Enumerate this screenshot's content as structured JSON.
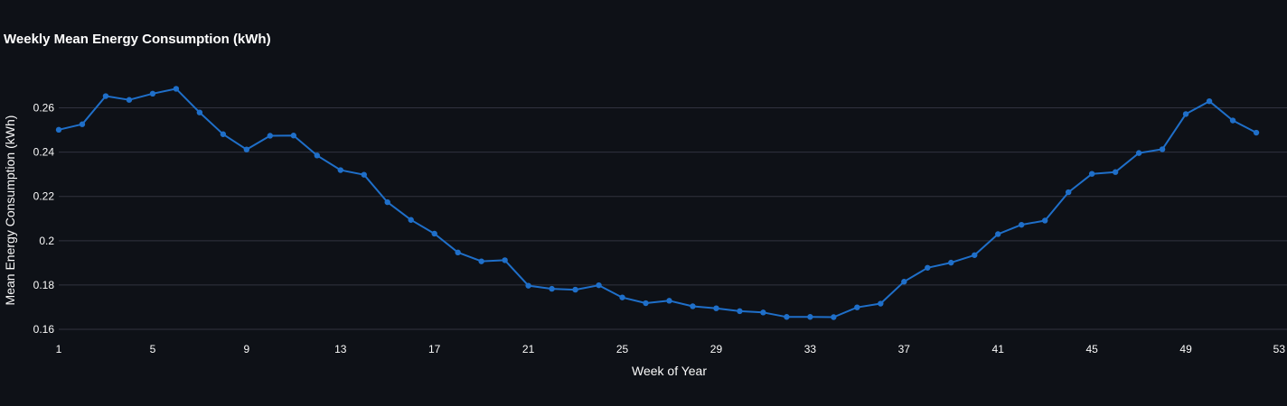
{
  "chart_data": {
    "type": "line",
    "title": "Weekly Mean Energy Consumption (kWh)",
    "xlabel": "Week of Year",
    "ylabel": "Mean Energy Consumption (kWh)",
    "xlim": [
      1,
      53
    ],
    "ylim": [
      0.16,
      0.27
    ],
    "xticks": [
      1,
      5,
      9,
      13,
      17,
      21,
      25,
      29,
      33,
      37,
      41,
      45,
      49,
      53
    ],
    "yticks": [
      0.16,
      0.18,
      0.2,
      0.22,
      0.24,
      0.26
    ],
    "ytick_labels": [
      "0.16",
      "0.18",
      "0.2",
      "0.22",
      "0.24",
      "0.26"
    ],
    "grid": true,
    "series": [
      {
        "color": "#1f6fc9",
        "x": [
          1,
          2,
          3,
          4,
          5,
          6,
          7,
          8,
          9,
          10,
          11,
          12,
          13,
          14,
          15,
          16,
          17,
          18,
          19,
          20,
          21,
          22,
          23,
          24,
          25,
          26,
          27,
          28,
          29,
          30,
          31,
          32,
          33,
          34,
          35,
          36,
          37,
          38,
          39,
          40,
          41,
          42,
          43,
          44,
          45,
          46,
          47,
          48,
          49,
          50,
          51,
          52
        ],
        "y": [
          0.2501,
          0.2526,
          0.2653,
          0.2636,
          0.2664,
          0.2686,
          0.2579,
          0.2481,
          0.2412,
          0.2474,
          0.2475,
          0.2385,
          0.2319,
          0.2298,
          0.2174,
          0.2094,
          0.2032,
          0.1947,
          0.1907,
          0.1912,
          0.1797,
          0.1783,
          0.1779,
          0.1799,
          0.1744,
          0.1718,
          0.1729,
          0.1704,
          0.1695,
          0.1682,
          0.1676,
          0.1656,
          0.1656,
          0.1655,
          0.1699,
          0.1716,
          0.1815,
          0.1878,
          0.1901,
          0.1935,
          0.203,
          0.2072,
          0.2091,
          0.2219,
          0.2302,
          0.231,
          0.2396,
          0.2413,
          0.2572,
          0.263,
          0.2543,
          0.2488
        ]
      }
    ]
  }
}
